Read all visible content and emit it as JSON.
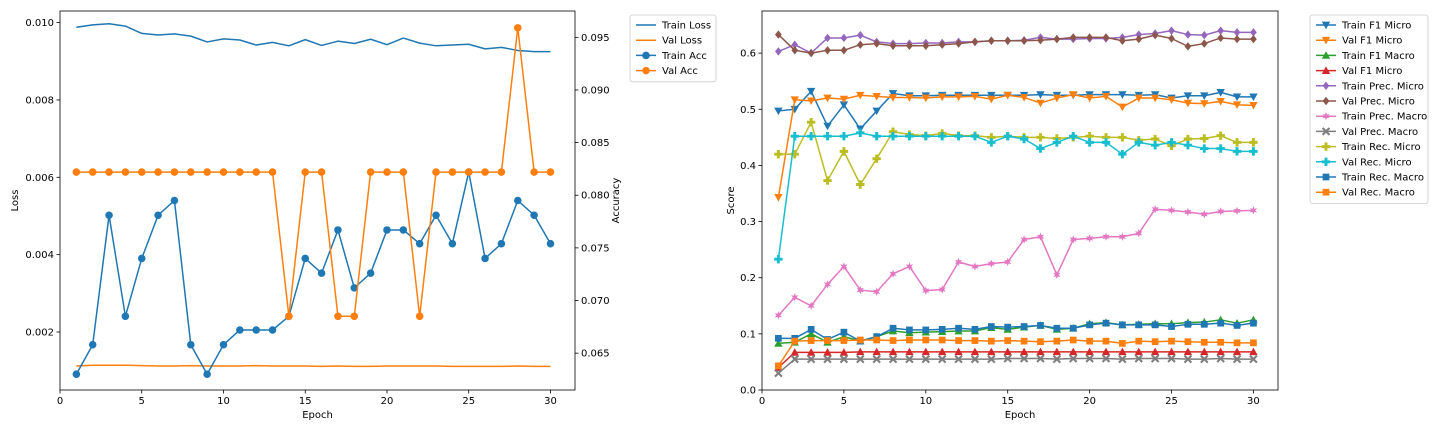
{
  "chart_data": [
    {
      "type": "line",
      "xlabel": "Epoch",
      "ylabel": "Loss",
      "y2label": "Accuracy",
      "x": [
        1,
        2,
        3,
        4,
        5,
        6,
        7,
        8,
        9,
        10,
        11,
        12,
        13,
        14,
        15,
        16,
        17,
        18,
        19,
        20,
        21,
        22,
        23,
        24,
        25,
        26,
        27,
        28,
        29,
        30
      ],
      "xlim": [
        0,
        31.5
      ],
      "xticks": [
        "0",
        "5",
        "10",
        "15",
        "20",
        "25",
        "30"
      ],
      "xtick_values": [
        0,
        5,
        10,
        15,
        20,
        25,
        30
      ],
      "ylim": [
        0.0005,
        0.0103
      ],
      "yticks": [
        "0.002",
        "0.004",
        "0.006",
        "0.008",
        "0.010"
      ],
      "ytick_values": [
        0.002,
        0.004,
        0.006,
        0.008,
        0.01
      ],
      "y2lim": [
        0.0615,
        0.0975
      ],
      "y2ticks": [
        "0.065",
        "0.070",
        "0.075",
        "0.080",
        "0.085",
        "0.090",
        "0.095"
      ],
      "y2tick_values": [
        0.065,
        0.07,
        0.075,
        0.08,
        0.085,
        0.09,
        0.095
      ],
      "legend_position": "outside-right",
      "grid": false,
      "series": [
        {
          "name": "Train Loss",
          "axis": "left",
          "color": "#1f77b4",
          "marker": "none",
          "values": [
            0.00988,
            0.00994,
            0.00997,
            0.00991,
            0.00972,
            0.00968,
            0.00971,
            0.00965,
            0.0095,
            0.00958,
            0.00955,
            0.00942,
            0.00949,
            0.0094,
            0.00956,
            0.00941,
            0.00952,
            0.00946,
            0.00957,
            0.00943,
            0.0096,
            0.00947,
            0.0094,
            0.00942,
            0.00944,
            0.00932,
            0.00936,
            0.00928,
            0.00925,
            0.00925
          ]
        },
        {
          "name": "Val Loss",
          "axis": "left",
          "color": "#ff7f0e",
          "marker": "none",
          "values": [
            0.00112,
            0.00114,
            0.00114,
            0.00114,
            0.00113,
            0.00112,
            0.00112,
            0.00113,
            0.00112,
            0.00112,
            0.00112,
            0.00113,
            0.00112,
            0.00112,
            0.00112,
            0.00111,
            0.00112,
            0.00111,
            0.00111,
            0.00112,
            0.00112,
            0.00112,
            0.00112,
            0.00111,
            0.00111,
            0.00111,
            0.00111,
            0.00112,
            0.00111,
            0.00111
          ]
        },
        {
          "name": "Train Acc",
          "axis": "right",
          "color": "#1f77b4",
          "marker": "circle",
          "values": [
            0.063,
            0.0658,
            0.0781,
            0.0685,
            0.074,
            0.0781,
            0.0795,
            0.0658,
            0.063,
            0.0658,
            0.0672,
            0.0672,
            0.0672,
            0.0685,
            0.074,
            0.0726,
            0.0767,
            0.0712,
            0.0726,
            0.0767,
            0.0767,
            0.0754,
            0.0781,
            0.0754,
            0.0822,
            0.074,
            0.0754,
            0.0795,
            0.0781,
            0.0754
          ]
        },
        {
          "name": "Val Acc",
          "axis": "right",
          "color": "#ff7f0e",
          "marker": "circle",
          "values": [
            0.0822,
            0.0822,
            0.0822,
            0.0822,
            0.0822,
            0.0822,
            0.0822,
            0.0822,
            0.0822,
            0.0822,
            0.0822,
            0.0822,
            0.0822,
            0.0685,
            0.0822,
            0.0822,
            0.0685,
            0.0685,
            0.0822,
            0.0822,
            0.0822,
            0.0685,
            0.0822,
            0.0822,
            0.0822,
            0.0822,
            0.0822,
            0.0959,
            0.0822,
            0.0822
          ]
        }
      ]
    },
    {
      "type": "line",
      "xlabel": "Epoch",
      "ylabel": "Score",
      "x": [
        1,
        2,
        3,
        4,
        5,
        6,
        7,
        8,
        9,
        10,
        11,
        12,
        13,
        14,
        15,
        16,
        17,
        18,
        19,
        20,
        21,
        22,
        23,
        24,
        25,
        26,
        27,
        28,
        29,
        30
      ],
      "xlim": [
        0,
        31.5
      ],
      "xticks": [
        "0",
        "5",
        "10",
        "15",
        "20",
        "25",
        "30"
      ],
      "xtick_values": [
        0,
        5,
        10,
        15,
        20,
        25,
        30
      ],
      "ylim": [
        0,
        0.675
      ],
      "yticks": [
        "0.0",
        "0.1",
        "0.2",
        "0.3",
        "0.4",
        "0.5",
        "0.6"
      ],
      "ytick_values": [
        0,
        0.1,
        0.2,
        0.3,
        0.4,
        0.5,
        0.6
      ],
      "legend_position": "outside-right",
      "grid": false,
      "series": [
        {
          "name": "Train F1 Micro",
          "color": "#1f77b4",
          "marker": "tri-down",
          "values": [
            0.497,
            0.5,
            0.532,
            0.47,
            0.508,
            0.465,
            0.497,
            0.528,
            0.524,
            0.524,
            0.525,
            0.525,
            0.525,
            0.525,
            0.525,
            0.525,
            0.526,
            0.525,
            0.525,
            0.526,
            0.526,
            0.526,
            0.525,
            0.526,
            0.52,
            0.524,
            0.524,
            0.53,
            0.522,
            0.522
          ]
        },
        {
          "name": "Val F1 Micro",
          "color": "#ff7f0e",
          "marker": "tri-down",
          "values": [
            0.343,
            0.517,
            0.515,
            0.52,
            0.518,
            0.525,
            0.523,
            0.521,
            0.521,
            0.52,
            0.522,
            0.522,
            0.523,
            0.518,
            0.525,
            0.521,
            0.511,
            0.52,
            0.526,
            0.52,
            0.523,
            0.504,
            0.52,
            0.52,
            0.517,
            0.511,
            0.51,
            0.514,
            0.508,
            0.507
          ]
        },
        {
          "name": "Train F1 Macro",
          "color": "#2ca02c",
          "marker": "tri-up",
          "values": [
            0.083,
            0.085,
            0.1,
            0.085,
            0.095,
            0.087,
            0.095,
            0.105,
            0.102,
            0.103,
            0.104,
            0.105,
            0.105,
            0.111,
            0.108,
            0.112,
            0.115,
            0.108,
            0.11,
            0.118,
            0.12,
            0.116,
            0.117,
            0.118,
            0.118,
            0.12,
            0.121,
            0.125,
            0.119,
            0.125
          ]
        },
        {
          "name": "Val F1 Micro",
          "color": "#d62728",
          "marker": "tri-up",
          "values": [
            0.04,
            0.067,
            0.067,
            0.067,
            0.067,
            0.068,
            0.068,
            0.068,
            0.068,
            0.068,
            0.068,
            0.068,
            0.068,
            0.068,
            0.068,
            0.068,
            0.068,
            0.068,
            0.068,
            0.068,
            0.068,
            0.068,
            0.068,
            0.068,
            0.068,
            0.068,
            0.068,
            0.068,
            0.068,
            0.068
          ]
        },
        {
          "name": "Train Prec. Micro",
          "color": "#9467bd",
          "marker": "diamond",
          "values": [
            0.603,
            0.615,
            0.6,
            0.627,
            0.627,
            0.632,
            0.62,
            0.617,
            0.617,
            0.618,
            0.618,
            0.62,
            0.62,
            0.622,
            0.622,
            0.623,
            0.628,
            0.625,
            0.625,
            0.626,
            0.626,
            0.628,
            0.633,
            0.635,
            0.64,
            0.633,
            0.632,
            0.64,
            0.637,
            0.637
          ]
        },
        {
          "name": "Val Prec. Micro",
          "color": "#8c564b",
          "marker": "diamond",
          "values": [
            0.633,
            0.605,
            0.6,
            0.605,
            0.605,
            0.615,
            0.617,
            0.613,
            0.613,
            0.613,
            0.615,
            0.617,
            0.62,
            0.622,
            0.622,
            0.622,
            0.623,
            0.625,
            0.628,
            0.628,
            0.628,
            0.622,
            0.625,
            0.632,
            0.626,
            0.612,
            0.617,
            0.627,
            0.625,
            0.625
          ]
        },
        {
          "name": "Train Prec. Macro",
          "color": "#e377c2",
          "marker": "star",
          "values": [
            0.133,
            0.165,
            0.15,
            0.188,
            0.22,
            0.178,
            0.175,
            0.207,
            0.22,
            0.177,
            0.179,
            0.228,
            0.22,
            0.225,
            0.228,
            0.268,
            0.273,
            0.205,
            0.268,
            0.27,
            0.273,
            0.273,
            0.279,
            0.322,
            0.32,
            0.317,
            0.313,
            0.318,
            0.319,
            0.32
          ]
        },
        {
          "name": "Val Prec. Macro",
          "color": "#7f7f7f",
          "marker": "x",
          "values": [
            0.03,
            0.055,
            0.055,
            0.055,
            0.055,
            0.055,
            0.055,
            0.055,
            0.055,
            0.055,
            0.055,
            0.055,
            0.055,
            0.055,
            0.056,
            0.056,
            0.056,
            0.055,
            0.056,
            0.056,
            0.056,
            0.055,
            0.056,
            0.056,
            0.056,
            0.055,
            0.055,
            0.056,
            0.055,
            0.055
          ]
        },
        {
          "name": "Train Rec. Micro",
          "color": "#bcbd22",
          "marker": "plus",
          "values": [
            0.42,
            0.42,
            0.477,
            0.373,
            0.425,
            0.366,
            0.412,
            0.46,
            0.455,
            0.453,
            0.457,
            0.453,
            0.453,
            0.45,
            0.452,
            0.45,
            0.45,
            0.448,
            0.45,
            0.452,
            0.45,
            0.45,
            0.445,
            0.447,
            0.435,
            0.447,
            0.448,
            0.453,
            0.441,
            0.441
          ]
        },
        {
          "name": "Val Rec. Micro",
          "color": "#17becf",
          "marker": "plus",
          "values": [
            0.233,
            0.452,
            0.452,
            0.452,
            0.452,
            0.458,
            0.452,
            0.452,
            0.452,
            0.452,
            0.452,
            0.452,
            0.452,
            0.441,
            0.452,
            0.447,
            0.43,
            0.441,
            0.452,
            0.441,
            0.441,
            0.42,
            0.441,
            0.436,
            0.441,
            0.436,
            0.43,
            0.43,
            0.425,
            0.425
          ]
        },
        {
          "name": "Train Rec. Macro",
          "color": "#1f77b4",
          "marker": "square",
          "values": [
            0.092,
            0.092,
            0.108,
            0.09,
            0.103,
            0.087,
            0.095,
            0.11,
            0.107,
            0.107,
            0.108,
            0.11,
            0.108,
            0.113,
            0.112,
            0.113,
            0.115,
            0.11,
            0.11,
            0.116,
            0.119,
            0.116,
            0.116,
            0.116,
            0.113,
            0.117,
            0.117,
            0.119,
            0.115,
            0.119
          ]
        },
        {
          "name": "Val Rec. Macro",
          "color": "#ff7f0e",
          "marker": "square",
          "values": [
            0.043,
            0.087,
            0.088,
            0.088,
            0.088,
            0.089,
            0.089,
            0.088,
            0.089,
            0.089,
            0.089,
            0.088,
            0.088,
            0.087,
            0.088,
            0.087,
            0.086,
            0.087,
            0.089,
            0.087,
            0.087,
            0.083,
            0.087,
            0.086,
            0.087,
            0.086,
            0.085,
            0.085,
            0.084,
            0.084
          ]
        }
      ]
    }
  ]
}
